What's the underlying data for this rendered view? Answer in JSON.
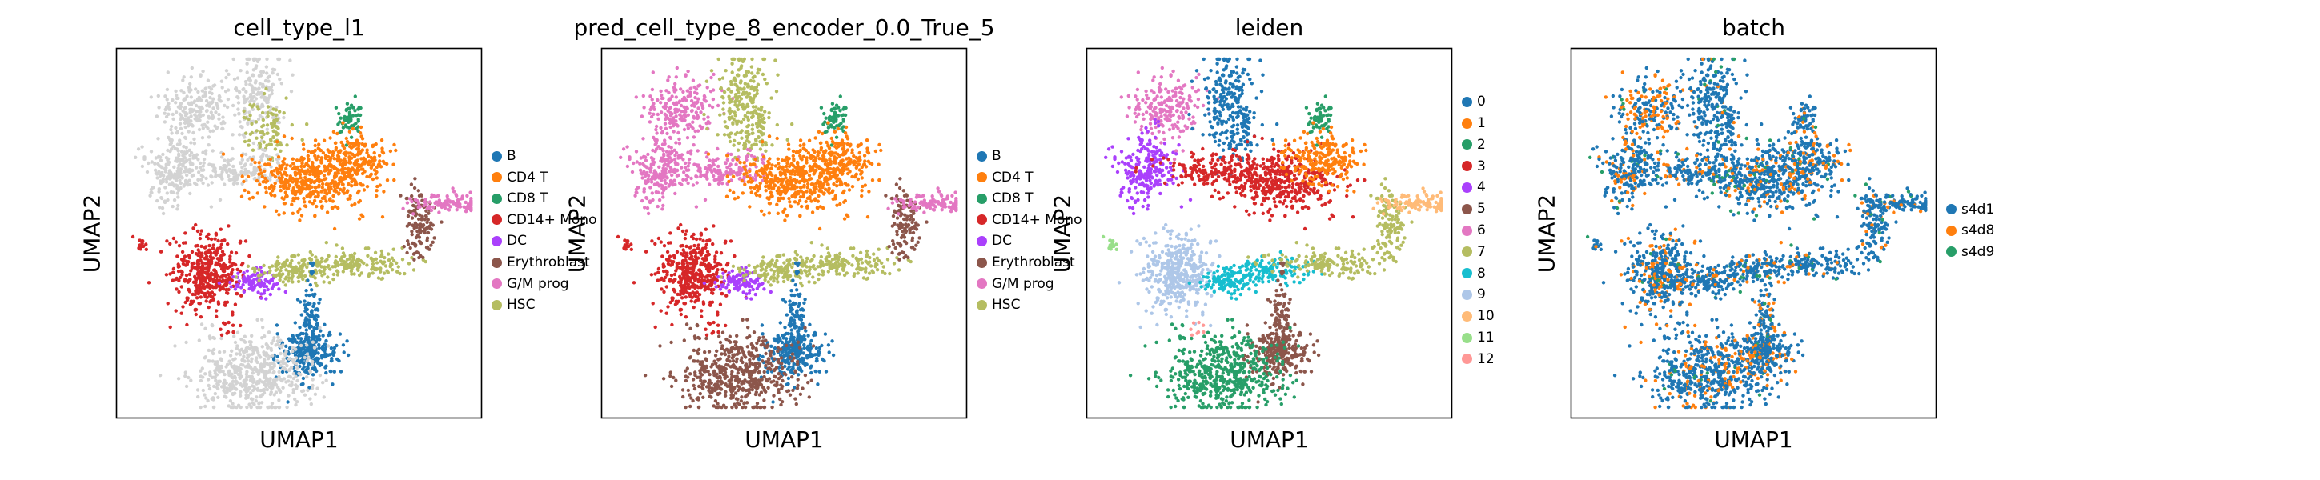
{
  "chart_data": [
    {
      "type": "scatter",
      "title": "cell_type_l1",
      "xlabel": "UMAP1",
      "ylabel": "UMAP2",
      "legend_position": "right",
      "background_category_color": "#d3d3d3",
      "series": [
        {
          "name": "B",
          "color": "#1f77b4"
        },
        {
          "name": "CD4 T",
          "color": "#ff7f0e"
        },
        {
          "name": "CD8 T",
          "color": "#279e68"
        },
        {
          "name": "CD14+ Mono",
          "color": "#d62728"
        },
        {
          "name": "DC",
          "color": "#aa40fc"
        },
        {
          "name": "Erythroblast",
          "color": "#8c564b"
        },
        {
          "name": "G/M prog",
          "color": "#e377c2"
        },
        {
          "name": "HSC",
          "color": "#b5bd61"
        }
      ]
    },
    {
      "type": "scatter",
      "title": "pred_cell_type_8_encoder_0.0_True_5",
      "xlabel": "UMAP1",
      "ylabel": "UMAP2",
      "legend_position": "right",
      "series": [
        {
          "name": "B",
          "color": "#1f77b4"
        },
        {
          "name": "CD4 T",
          "color": "#ff7f0e"
        },
        {
          "name": "CD8 T",
          "color": "#279e68"
        },
        {
          "name": "CD14+ Mono",
          "color": "#d62728"
        },
        {
          "name": "DC",
          "color": "#aa40fc"
        },
        {
          "name": "Erythroblast",
          "color": "#8c564b"
        },
        {
          "name": "G/M prog",
          "color": "#e377c2"
        },
        {
          "name": "HSC",
          "color": "#b5bd61"
        }
      ]
    },
    {
      "type": "scatter",
      "title": "leiden",
      "xlabel": "UMAP1",
      "ylabel": "UMAP2",
      "legend_position": "right",
      "series": [
        {
          "name": "0",
          "color": "#1f77b4"
        },
        {
          "name": "1",
          "color": "#ff7f0e"
        },
        {
          "name": "2",
          "color": "#279e68"
        },
        {
          "name": "3",
          "color": "#d62728"
        },
        {
          "name": "4",
          "color": "#aa40fc"
        },
        {
          "name": "5",
          "color": "#8c564b"
        },
        {
          "name": "6",
          "color": "#e377c2"
        },
        {
          "name": "7",
          "color": "#b5bd61"
        },
        {
          "name": "8",
          "color": "#17becf"
        },
        {
          "name": "9",
          "color": "#aec7e8"
        },
        {
          "name": "10",
          "color": "#ffbb78"
        },
        {
          "name": "11",
          "color": "#98df8a"
        },
        {
          "name": "12",
          "color": "#ff9896"
        }
      ]
    },
    {
      "type": "scatter",
      "title": "batch",
      "xlabel": "UMAP1",
      "ylabel": "UMAP2",
      "legend_position": "right",
      "series": [
        {
          "name": "s4d1",
          "color": "#1f77b4"
        },
        {
          "name": "s4d8",
          "color": "#ff7f0e"
        },
        {
          "name": "s4d9",
          "color": "#279e68"
        }
      ]
    }
  ]
}
